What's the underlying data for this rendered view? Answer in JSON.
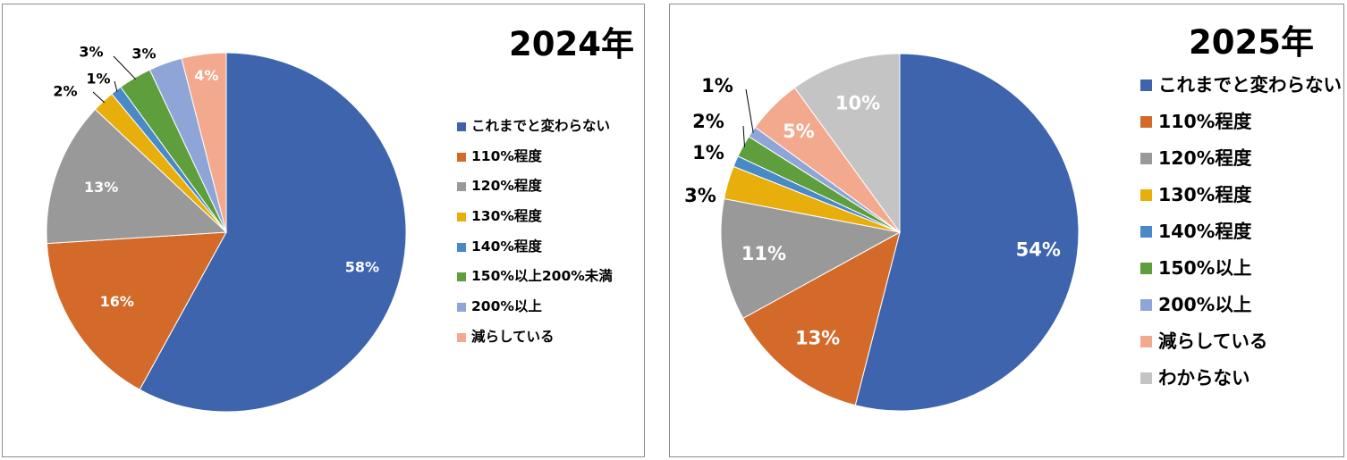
{
  "chart_data": [
    {
      "type": "pie",
      "title": "2024年",
      "categories": [
        "これまでと変わらない",
        "110%程度",
        "120%程度",
        "130%程度",
        "140%程度",
        "150%以上200%未満",
        "200%以上",
        "減らしている"
      ],
      "values": [
        58,
        16,
        13,
        2,
        1,
        3,
        3,
        4
      ],
      "labels": [
        "58%",
        "16%",
        "13%",
        "2%",
        "1%",
        "3%",
        "3%",
        "4%"
      ],
      "colors": [
        "#3D64AD",
        "#D46A2A",
        "#999999",
        "#E8AE0C",
        "#4A89C8",
        "#5E9E3C",
        "#8FA5D7",
        "#F2A98D"
      ],
      "legend_position": "right"
    },
    {
      "type": "pie",
      "title": "2025年",
      "categories": [
        "これまでと変わらない",
        "110%程度",
        "120%程度",
        "130%程度",
        "140%程度",
        "150%以上",
        "200%以上",
        "減らしている",
        "わからない"
      ],
      "values": [
        54,
        13,
        11,
        3,
        1,
        2,
        1,
        5,
        10
      ],
      "labels": [
        "54%",
        "13%",
        "11%",
        "3%",
        "1%",
        "2%",
        "1%",
        "5%",
        "10%"
      ],
      "colors": [
        "#3D64AD",
        "#D46A2A",
        "#999999",
        "#E8AE0C",
        "#4A89C8",
        "#5E9E3C",
        "#8FA5D7",
        "#F2A98D",
        "#C4C4C4"
      ],
      "legend_position": "right"
    }
  ]
}
